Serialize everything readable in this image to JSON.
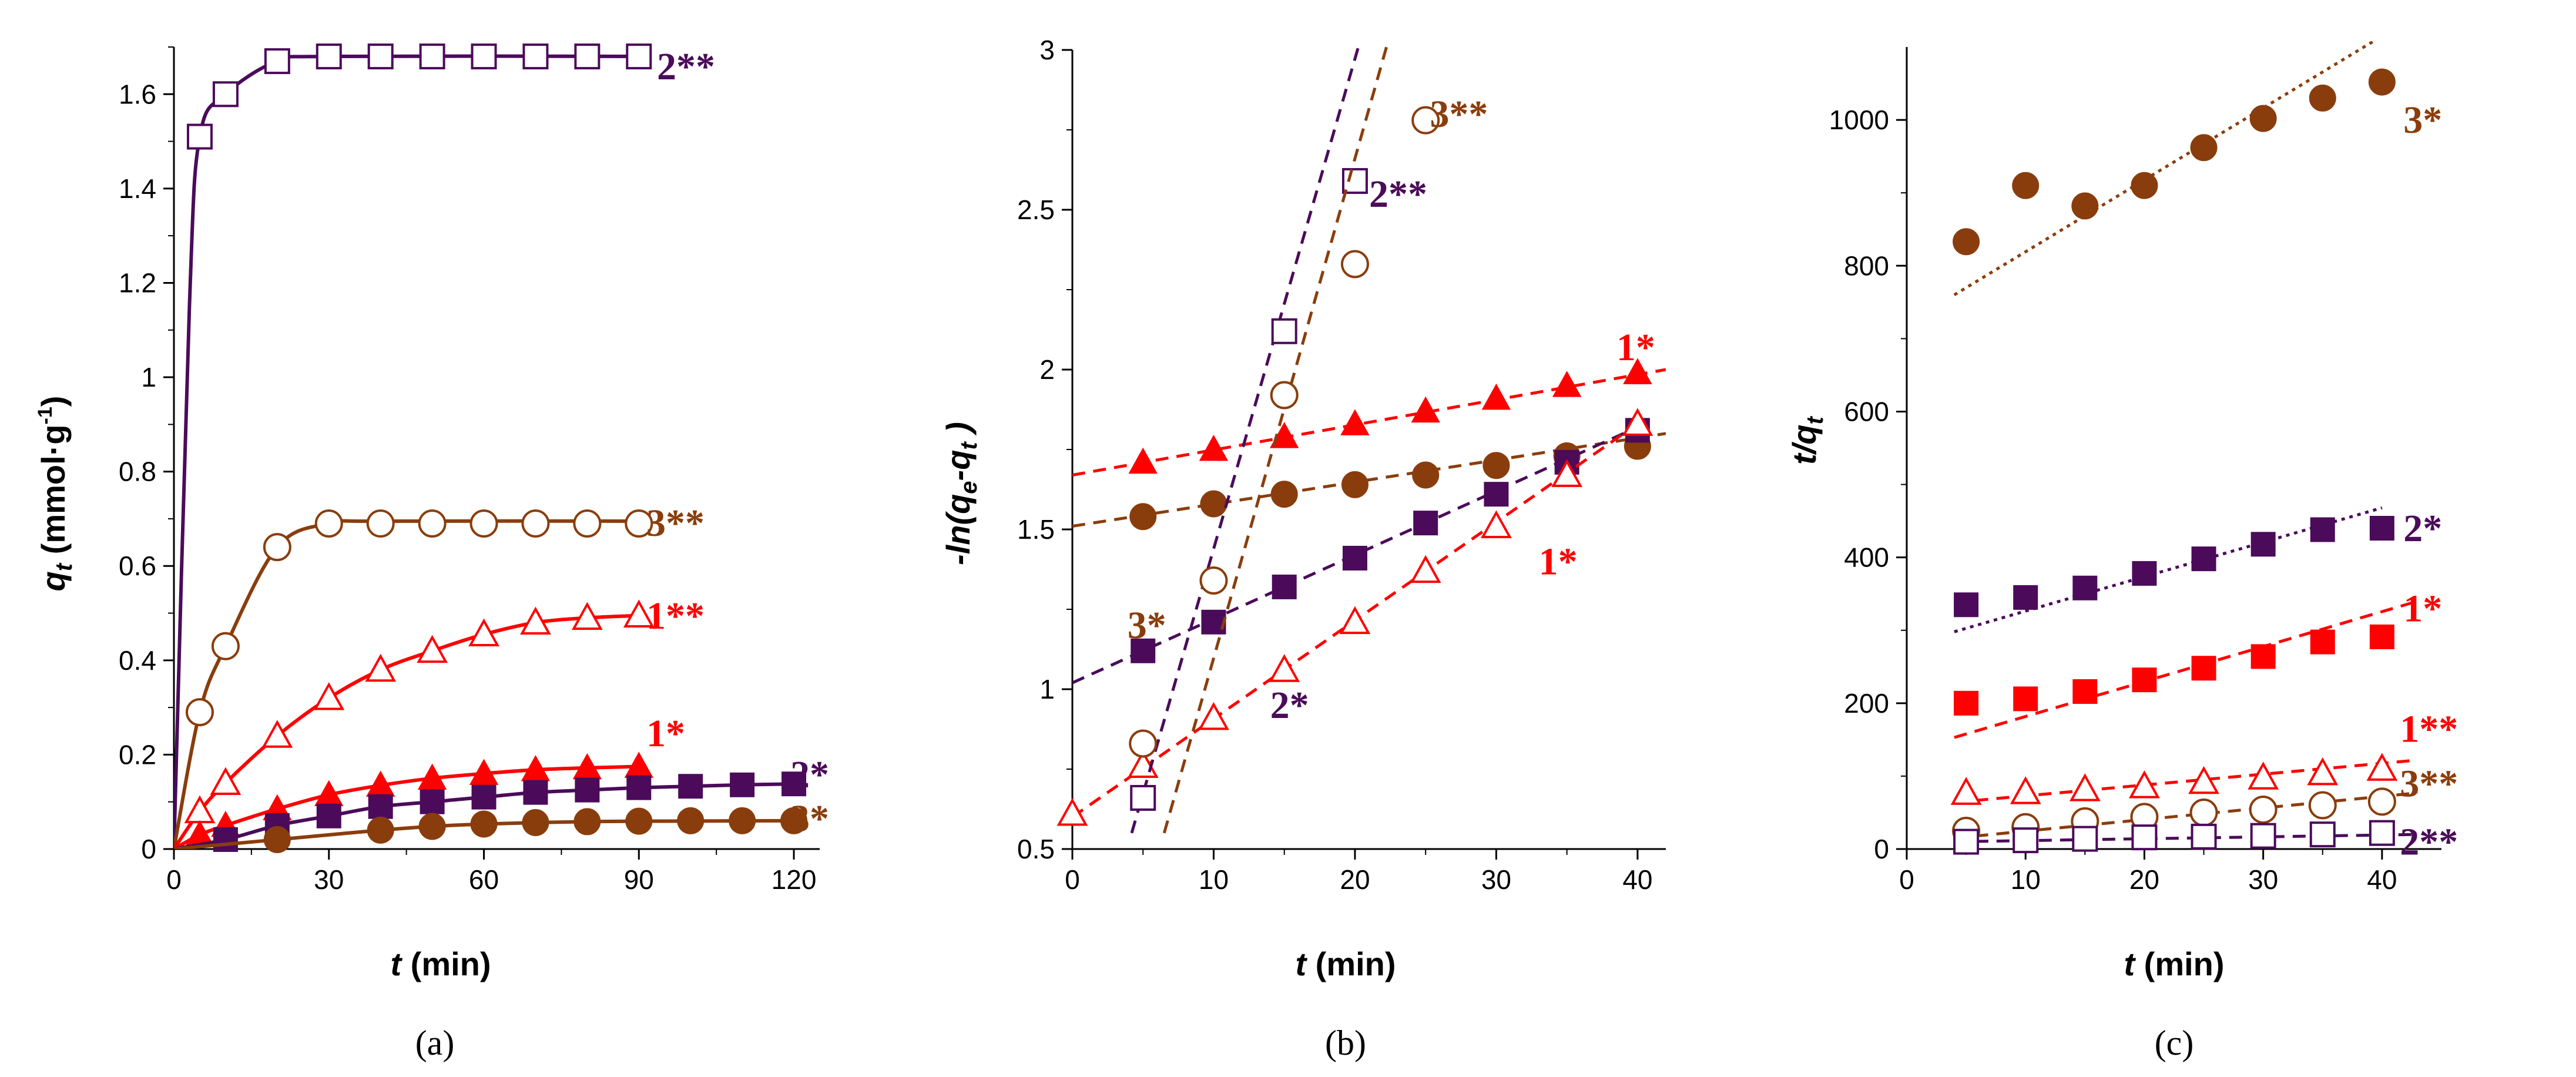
{
  "colors": {
    "red": "#ff0000",
    "purple": "#4b0b5a",
    "brown": "#8a3d0c",
    "axis": "#000000"
  },
  "chart_data": [
    {
      "type": "line",
      "panel_label": "(a)",
      "ylabel_main": "q",
      "ylabel_sub": "t",
      "ylabel_unit": " (mmol·g",
      "ylabel_exp": "-1",
      "ylabel_close": ")",
      "xlabel_var": "t",
      "xlabel_unit": " (min)",
      "xlim": [
        0,
        125
      ],
      "ylim": [
        0,
        1.7
      ],
      "xticks": [
        "0",
        "30",
        "60",
        "90",
        "120"
      ],
      "xtick_values": [
        0,
        30,
        60,
        90,
        120
      ],
      "yticks": [
        "0",
        "0.2",
        "0.4",
        "0.6",
        "0.8",
        "1",
        "1.2",
        "1.4",
        "1.6"
      ],
      "ytick_values": [
        0,
        0.2,
        0.4,
        0.6,
        0.8,
        1.0,
        1.2,
        1.4,
        1.6
      ],
      "series": [
        {
          "name": "2**",
          "color": "#4b0b5a",
          "marker": "square-open",
          "curve": [
            [
              0,
              0
            ],
            [
              3,
              1.15
            ],
            [
              5,
              1.51
            ],
            [
              10,
              1.6
            ],
            [
              20,
              1.67
            ],
            [
              30,
              1.68
            ],
            [
              90,
              1.68
            ]
          ],
          "x": [
            5,
            10,
            20,
            30,
            40,
            50,
            60,
            70,
            80,
            90
          ],
          "y": [
            1.51,
            1.6,
            1.67,
            1.68,
            1.68,
            1.68,
            1.68,
            1.68,
            1.68,
            1.68
          ]
        },
        {
          "name": "3**",
          "color": "#8a3d0c",
          "marker": "circle-open",
          "curve": [
            [
              0,
              0
            ],
            [
              5,
              0.29
            ],
            [
              10,
              0.43
            ],
            [
              20,
              0.64
            ],
            [
              30,
              0.69
            ],
            [
              40,
              0.695
            ],
            [
              90,
              0.695
            ]
          ],
          "x": [
            5,
            10,
            20,
            30,
            40,
            50,
            60,
            70,
            80,
            90
          ],
          "y": [
            0.29,
            0.43,
            0.64,
            0.69,
            0.69,
            0.69,
            0.69,
            0.69,
            0.69,
            0.69
          ]
        },
        {
          "name": "1**",
          "color": "#ff0000",
          "marker": "triangle-open",
          "curve": [
            [
              0,
              0
            ],
            [
              5,
              0.08
            ],
            [
              10,
              0.14
            ],
            [
              20,
              0.24
            ],
            [
              30,
              0.32
            ],
            [
              40,
              0.38
            ],
            [
              50,
              0.42
            ],
            [
              60,
              0.455
            ],
            [
              70,
              0.48
            ],
            [
              80,
              0.49
            ],
            [
              90,
              0.495
            ]
          ],
          "x": [
            5,
            10,
            20,
            30,
            40,
            50,
            60,
            70,
            80,
            90
          ],
          "y": [
            0.08,
            0.14,
            0.24,
            0.32,
            0.38,
            0.42,
            0.455,
            0.48,
            0.49,
            0.495
          ]
        },
        {
          "name": "1*",
          "color": "#ff0000",
          "marker": "triangle-filled",
          "curve": [
            [
              0,
              0
            ],
            [
              5,
              0.03
            ],
            [
              10,
              0.05
            ],
            [
              20,
              0.085
            ],
            [
              30,
              0.115
            ],
            [
              40,
              0.135
            ],
            [
              50,
              0.15
            ],
            [
              60,
              0.16
            ],
            [
              70,
              0.168
            ],
            [
              80,
              0.172
            ],
            [
              90,
              0.175
            ]
          ],
          "x": [
            5,
            10,
            20,
            30,
            40,
            50,
            60,
            70,
            80,
            90
          ],
          "y": [
            0.03,
            0.05,
            0.085,
            0.115,
            0.135,
            0.15,
            0.16,
            0.168,
            0.172,
            0.175
          ]
        },
        {
          "name": "2*",
          "color": "#4b0b5a",
          "marker": "square-filled",
          "curve": [
            [
              0,
              0
            ],
            [
              10,
              0.02
            ],
            [
              20,
              0.05
            ],
            [
              30,
              0.07
            ],
            [
              40,
              0.09
            ],
            [
              50,
              0.1
            ],
            [
              60,
              0.11
            ],
            [
              70,
              0.12
            ],
            [
              80,
              0.125
            ],
            [
              90,
              0.13
            ],
            [
              100,
              0.133
            ],
            [
              110,
              0.136
            ],
            [
              120,
              0.138
            ]
          ],
          "x": [
            10,
            20,
            30,
            40,
            50,
            60,
            70,
            80,
            90,
            100,
            110,
            120
          ],
          "y": [
            0.02,
            0.05,
            0.07,
            0.09,
            0.1,
            0.11,
            0.12,
            0.125,
            0.13,
            0.133,
            0.136,
            0.138
          ]
        },
        {
          "name": "3*",
          "color": "#8a3d0c",
          "marker": "circle-filled",
          "curve": [
            [
              0,
              0
            ],
            [
              10,
              0.01
            ],
            [
              20,
              0.02
            ],
            [
              30,
              0.03
            ],
            [
              40,
              0.04
            ],
            [
              50,
              0.048
            ],
            [
              60,
              0.053
            ],
            [
              70,
              0.056
            ],
            [
              80,
              0.058
            ],
            [
              90,
              0.059
            ],
            [
              120,
              0.06
            ]
          ],
          "x": [
            20,
            40,
            50,
            60,
            70,
            80,
            90,
            100,
            110,
            120
          ],
          "y": [
            0.02,
            0.04,
            0.048,
            0.053,
            0.056,
            0.058,
            0.059,
            0.06,
            0.06,
            0.06
          ]
        }
      ]
    },
    {
      "type": "scatter",
      "panel_label": "(b)",
      "ylabel_full": "-ln(q",
      "ylabel_sub1": "e",
      "ylabel_mid": "-q",
      "ylabel_sub2": "t",
      "ylabel_close": " )",
      "xlabel_var": "t",
      "xlabel_unit": " (min)",
      "xlim": [
        0,
        42
      ],
      "ylim": [
        0.5,
        3
      ],
      "xticks": [
        "0",
        "10",
        "20",
        "30",
        "40"
      ],
      "xtick_values": [
        0,
        10,
        20,
        30,
        40
      ],
      "yticks": [
        "0.5",
        "1",
        "1.5",
        "2",
        "2.5",
        "3"
      ],
      "ytick_values": [
        0.5,
        1,
        1.5,
        2,
        2.5,
        3
      ],
      "series": [
        {
          "name": "1*",
          "color": "#ff0000",
          "marker": "triangle-filled",
          "x": [
            5,
            10,
            15,
            20,
            25,
            30,
            35,
            40
          ],
          "y": [
            1.71,
            1.75,
            1.79,
            1.83,
            1.87,
            1.91,
            1.95,
            1.99
          ],
          "fit": [
            [
              0,
              1.67
            ],
            [
              42,
              2.0
            ]
          ]
        },
        {
          "name": "3*",
          "color": "#8a3d0c",
          "marker": "circle-filled",
          "x": [
            5,
            10,
            15,
            20,
            25,
            30,
            35,
            40
          ],
          "y": [
            1.54,
            1.58,
            1.61,
            1.64,
            1.67,
            1.7,
            1.73,
            1.76
          ],
          "fit": [
            [
              0,
              1.51
            ],
            [
              42,
              1.8
            ]
          ]
        },
        {
          "name": "2*",
          "color": "#4b0b5a",
          "marker": "square-filled",
          "x": [
            5,
            10,
            15,
            20,
            25,
            30,
            35,
            40
          ],
          "y": [
            1.12,
            1.21,
            1.32,
            1.41,
            1.52,
            1.61,
            1.71,
            1.81
          ],
          "fit": [
            [
              0,
              1.02
            ],
            [
              40,
              1.82
            ]
          ]
        },
        {
          "name": "1**",
          "color": "#ff0000",
          "marker": "triangle-open",
          "x": [
            0,
            5,
            10,
            15,
            20,
            25,
            30,
            35,
            40
          ],
          "y": [
            0.61,
            0.76,
            0.91,
            1.06,
            1.21,
            1.37,
            1.51,
            1.67,
            1.83
          ],
          "fit": [
            [
              0,
              0.6
            ],
            [
              40,
              1.83
            ]
          ]
        },
        {
          "name": "2**",
          "color": "#4b0b5a",
          "marker": "square-open",
          "x": [
            5,
            15,
            20
          ],
          "y": [
            0.66,
            2.12,
            2.59
          ],
          "fit": [
            [
              4.2,
              0.55
            ],
            [
              20.7,
              3.08
            ]
          ]
        },
        {
          "name": "3**",
          "color": "#8a3d0c",
          "marker": "circle-open",
          "x": [
            5,
            10,
            15,
            20,
            25
          ],
          "y": [
            0.83,
            1.34,
            1.92,
            2.33,
            2.78
          ],
          "fit": [
            [
              6.5,
              0.55
            ],
            [
              22.3,
              3.02
            ]
          ]
        }
      ],
      "annotations": [
        {
          "text": "3**",
          "color": "#8a3d0c",
          "x": 25.3,
          "y": 2.8
        },
        {
          "text": "2**",
          "color": "#4b0b5a",
          "x": 21.0,
          "y": 2.55
        },
        {
          "text": "1*",
          "color": "#ff0000",
          "x": 38.5,
          "y": 2.07
        },
        {
          "text": "3*",
          "color": "#8a3d0c",
          "x": 3.9,
          "y": 1.2
        },
        {
          "text": "2*",
          "color": "#4b0b5a",
          "x": 14.0,
          "y": 0.95
        },
        {
          "text": "1*",
          "color": "#ff0000",
          "x": 33.0,
          "y": 1.4
        }
      ]
    },
    {
      "type": "scatter",
      "panel_label": "(c)",
      "ylabel_main": "t/q",
      "ylabel_sub": "t",
      "xlabel_var": "t",
      "xlabel_unit": " (min)",
      "xlim": [
        0,
        45
      ],
      "ylim": [
        0,
        1100
      ],
      "xticks": [
        "0",
        "10",
        "20",
        "30",
        "40"
      ],
      "xtick_values": [
        0,
        10,
        20,
        30,
        40
      ],
      "yticks": [
        "0",
        "200",
        "400",
        "600",
        "800",
        "1000"
      ],
      "ytick_values": [
        0,
        200,
        400,
        600,
        800,
        1000
      ],
      "series": [
        {
          "name": "3*",
          "color": "#8a3d0c",
          "marker": "circle-filled",
          "x": [
            5,
            10,
            15,
            20,
            25,
            30,
            35,
            40
          ],
          "y": [
            833,
            910,
            882,
            910,
            962,
            1002,
            1030,
            1052
          ],
          "fit": [
            [
              4,
              760
            ],
            [
              40,
              1115
            ]
          ]
        },
        {
          "name": "2*",
          "color": "#4b0b5a",
          "marker": "square-filled",
          "x": [
            5,
            10,
            15,
            20,
            25,
            30,
            35,
            40
          ],
          "y": [
            335,
            345,
            358,
            378,
            398,
            418,
            438,
            440
          ],
          "fit": [
            [
              4,
              298
            ],
            [
              40,
              468
            ]
          ]
        },
        {
          "name": "1*",
          "color": "#ff0000",
          "marker": "square-filled",
          "x": [
            5,
            10,
            15,
            20,
            25,
            30,
            35,
            40
          ],
          "y": [
            200,
            206,
            216,
            232,
            248,
            264,
            284,
            291
          ],
          "fit": [
            [
              4,
              153
            ],
            [
              43,
              340
            ]
          ]
        },
        {
          "name": "1**",
          "color": "#ff0000",
          "marker": "triangle-open",
          "x": [
            5,
            10,
            15,
            20,
            25,
            30,
            35,
            40
          ],
          "y": [
            77,
            78,
            82,
            86,
            92,
            98,
            104,
            110
          ],
          "fit": [
            [
              4,
              64
            ],
            [
              43,
              122
            ]
          ]
        },
        {
          "name": "3**",
          "color": "#8a3d0c",
          "marker": "circle-open",
          "x": [
            5,
            10,
            15,
            20,
            25,
            30,
            35,
            40
          ],
          "y": [
            25,
            30,
            38,
            44,
            50,
            54,
            60,
            65
          ],
          "fit": [
            [
              4,
              15
            ],
            [
              43,
              77
            ]
          ]
        },
        {
          "name": "2**",
          "color": "#4b0b5a",
          "marker": "square-open",
          "x": [
            5,
            10,
            15,
            20,
            25,
            30,
            35,
            40
          ],
          "y": [
            10,
            12,
            14,
            16,
            17,
            18,
            20,
            22
          ],
          "fit": [
            [
              4,
              10
            ],
            [
              43,
              20
            ]
          ]
        }
      ],
      "annotations": [
        {
          "text": "3*",
          "color": "#8a3d0c",
          "x": 41.8,
          "y": 1000
        },
        {
          "text": "2*",
          "color": "#4b0b5a",
          "x": 41.8,
          "y": 440
        },
        {
          "text": "1*",
          "color": "#ff0000",
          "x": 41.8,
          "y": 330
        },
        {
          "text": "1**",
          "color": "#ff0000",
          "x": 41.5,
          "y": 165
        },
        {
          "text": "3**",
          "color": "#8a3d0c",
          "x": 41.5,
          "y": 90
        },
        {
          "text": "2**",
          "color": "#4b0b5a",
          "x": 41.5,
          "y": 10
        }
      ]
    }
  ]
}
